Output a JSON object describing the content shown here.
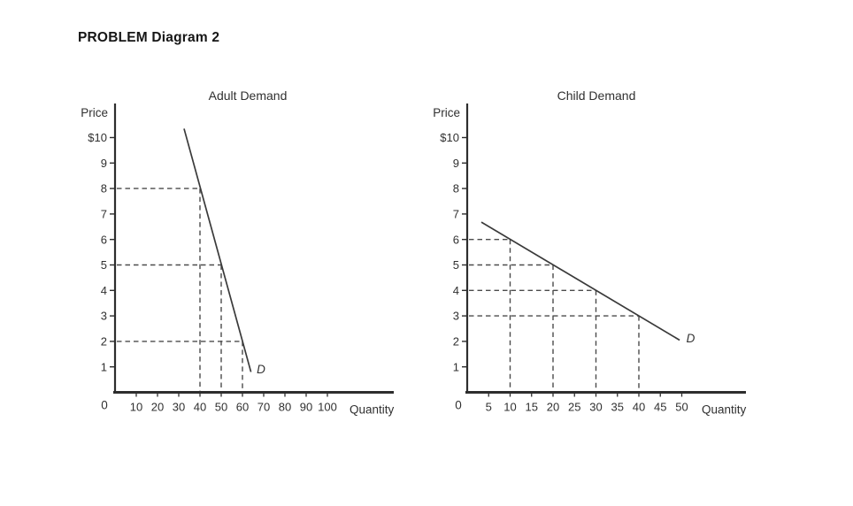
{
  "page": {
    "title": "PROBLEM Diagram 2"
  },
  "colors": {
    "axis": "#2d2d2d",
    "text": "#303030",
    "dashed": "#4b4b4b",
    "curve": "#3a3a3a"
  },
  "chart_data": [
    {
      "type": "line",
      "title": "Adult Demand",
      "ylabel": "Price",
      "xlabel": "Quantity",
      "origin_label": "0",
      "y_ticks": [
        [
          1,
          "1"
        ],
        [
          2,
          "2"
        ],
        [
          3,
          "3"
        ],
        [
          4,
          "4"
        ],
        [
          5,
          "5"
        ],
        [
          6,
          "6"
        ],
        [
          7,
          "7"
        ],
        [
          8,
          "8"
        ],
        [
          9,
          "9"
        ],
        [
          10,
          "$10"
        ]
      ],
      "x_ticks": [
        [
          10,
          "10"
        ],
        [
          20,
          "20"
        ],
        [
          30,
          "30"
        ],
        [
          40,
          "40"
        ],
        [
          50,
          "50"
        ],
        [
          60,
          "60"
        ],
        [
          70,
          "70"
        ],
        [
          80,
          "80"
        ],
        [
          90,
          "90"
        ],
        [
          100,
          "100"
        ]
      ],
      "xlim": [
        0,
        131
      ],
      "ylim": [
        0,
        11.3
      ],
      "grid": false,
      "legend": false,
      "series": [
        {
          "name": "D",
          "color": "#3a3a3a",
          "points": [
            [
              32.5,
              10.35
            ],
            [
              64,
              0.8
            ]
          ]
        }
      ],
      "guides": [
        {
          "price": 8,
          "quantity": 40
        },
        {
          "price": 5,
          "quantity": 50
        },
        {
          "price": 2,
          "quantity": 60
        }
      ]
    },
    {
      "type": "line",
      "title": "Child Demand",
      "ylabel": "Price",
      "xlabel": "Quantity",
      "origin_label": "0",
      "y_ticks": [
        [
          1,
          "1"
        ],
        [
          2,
          "2"
        ],
        [
          3,
          "3"
        ],
        [
          4,
          "4"
        ],
        [
          5,
          "5"
        ],
        [
          6,
          "6"
        ],
        [
          7,
          "7"
        ],
        [
          8,
          "8"
        ],
        [
          9,
          "9"
        ],
        [
          10,
          "$10"
        ]
      ],
      "x_ticks": [
        [
          5,
          "5"
        ],
        [
          10,
          "10"
        ],
        [
          15,
          "15"
        ],
        [
          20,
          "20"
        ],
        [
          25,
          "25"
        ],
        [
          30,
          "30"
        ],
        [
          35,
          "35"
        ],
        [
          40,
          "40"
        ],
        [
          45,
          "45"
        ],
        [
          50,
          "50"
        ]
      ],
      "xlim": [
        0,
        65
      ],
      "ylim": [
        0,
        11.3
      ],
      "grid": false,
      "legend": false,
      "series": [
        {
          "name": "D",
          "color": "#3a3a3a",
          "points": [
            [
              3.3,
              6.68
            ],
            [
              49.5,
              2.05
            ]
          ]
        }
      ],
      "guides": [
        {
          "price": 6,
          "quantity": 10
        },
        {
          "price": 5,
          "quantity": 20
        },
        {
          "price": 4,
          "quantity": 30
        },
        {
          "price": 3,
          "quantity": 40
        }
      ]
    }
  ]
}
